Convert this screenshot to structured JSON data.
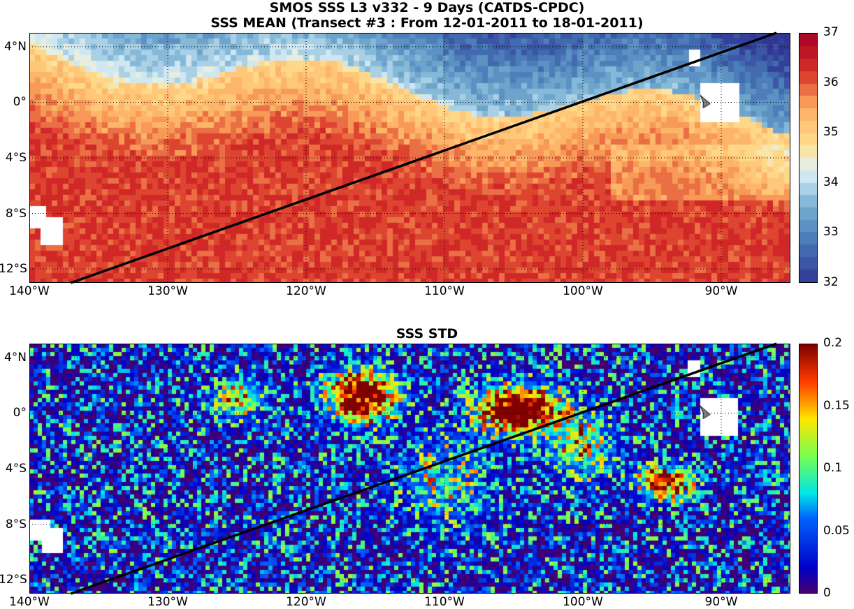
{
  "titles": {
    "line1": "SMOS SSS L3 v332 - 9 Days (CATDS-CPDC)",
    "line2": "SSS MEAN (Transect #3 : From 12-01-2011 to 18-01-2011)",
    "std": "SSS STD"
  },
  "map_extent": {
    "lon_min": -140,
    "lon_max": -85,
    "lat_min": -13,
    "lat_max": 5
  },
  "lat_ticks": [
    {
      "label": "4°N",
      "lat": 4
    },
    {
      "label": "0°",
      "lat": 0
    },
    {
      "label": "4°S",
      "lat": -4
    },
    {
      "label": "8°S",
      "lat": -8
    },
    {
      "label": "12°S",
      "lat": -12
    }
  ],
  "lon_ticks": [
    {
      "label": "140°W",
      "lon": -140
    },
    {
      "label": "130°W",
      "lon": -130
    },
    {
      "label": "120°W",
      "lon": -120
    },
    {
      "label": "110°W",
      "lon": -110
    },
    {
      "label": "100°W",
      "lon": -100
    },
    {
      "label": "90°W",
      "lon": -90
    }
  ],
  "transect": {
    "start": {
      "lon": -137,
      "lat": -13
    },
    "end": {
      "lon": -86,
      "lat": 5
    },
    "color": "#000000"
  },
  "chart_data": [
    {
      "type": "heatmap",
      "title": "SSS MEAN (Transect #3 : From 12-01-2011 to 18-01-2011)",
      "variable": "sea surface salinity mean",
      "colorbar": {
        "min": 32,
        "max": 37,
        "ticks": [
          "32",
          "33",
          "34",
          "35",
          "36",
          "37"
        ],
        "colormap": "blue-white-red"
      },
      "pattern": "fresh water (~32.5-34) north of 0° east of 110°W; saline (~35.5-36.3) south of 4°S"
    },
    {
      "type": "heatmap",
      "title": "SSS STD",
      "variable": "sea surface salinity standard deviation",
      "colorbar": {
        "min": 0,
        "max": 0.2,
        "ticks": [
          "0",
          "0.05",
          "0.1",
          "0.15",
          "0.2"
        ],
        "colormap": "jet"
      },
      "pattern": "mostly 0-0.06; hot spots >0.2 near 1°N 116°W and 0° 104°W, elevated near 5°S 94°W"
    }
  ]
}
